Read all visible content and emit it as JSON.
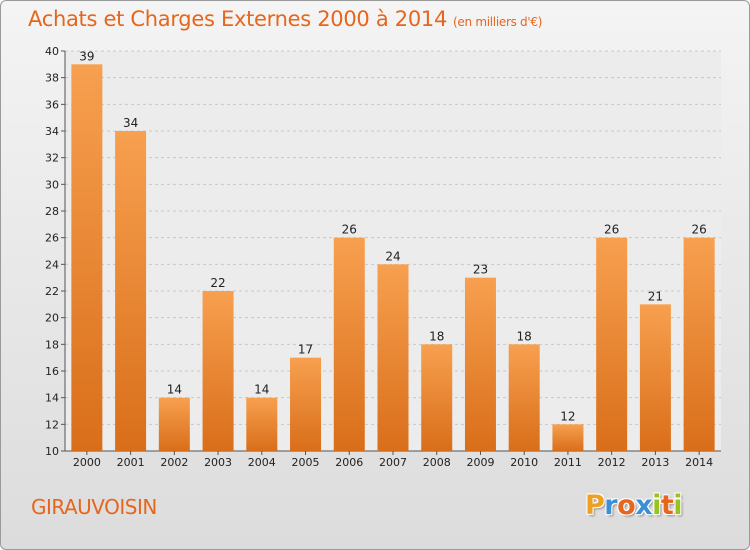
{
  "chart_data": {
    "type": "bar",
    "title": "Achats et Charges Externes 2000 à 2014",
    "subtitle": "(en milliers d'€)",
    "xlabel": "",
    "ylabel": "",
    "categories": [
      "2000",
      "2001",
      "2002",
      "2003",
      "2004",
      "2005",
      "2006",
      "2007",
      "2008",
      "2009",
      "2010",
      "2011",
      "2012",
      "2013",
      "2014"
    ],
    "values": [
      39,
      34,
      14,
      22,
      14,
      17,
      26,
      24,
      18,
      23,
      18,
      12,
      26,
      21,
      26
    ],
    "ylim": [
      10,
      40
    ],
    "yticks": [
      "10",
      "12",
      "14",
      "16",
      "18",
      "20",
      "22",
      "24",
      "26",
      "28",
      "30",
      "32",
      "34",
      "36",
      "38",
      "40"
    ],
    "grid": true,
    "bar_color_top": "#f7a04f",
    "bar_color_bottom": "#d96e1a"
  },
  "footer": {
    "commune": "GIRAUVOISIN",
    "logo_letters": [
      "P",
      "r",
      "o",
      "x",
      "i",
      "t",
      "i"
    ],
    "logo_colors": [
      "#f0a020",
      "#3a8fd6",
      "#e5661c",
      "#3a8fd6",
      "#9ac21e",
      "#e5661c",
      "#9ac21e"
    ]
  },
  "colors": {
    "accent": "#e5661c"
  }
}
